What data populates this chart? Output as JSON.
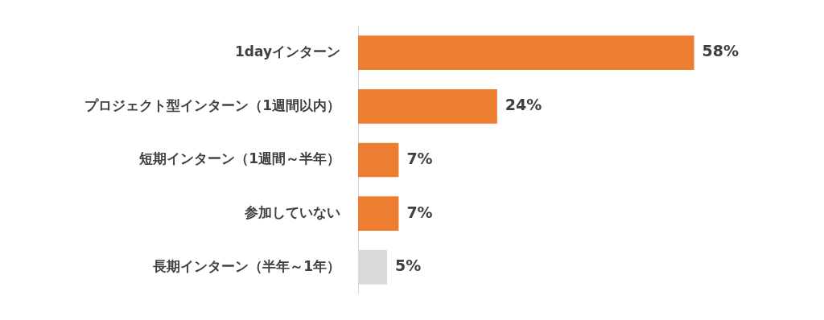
{
  "chart_data": {
    "type": "bar",
    "orientation": "horizontal",
    "categories": [
      "1dayインターン",
      "プロジェクト型インターン（1週間以内）",
      "短期インターン（1週間～半年）",
      "参加していない",
      "長期インターン（半年～1年）"
    ],
    "values": [
      58,
      24,
      7,
      7,
      5
    ],
    "colors": [
      "#ed7d31",
      "#ed7d31",
      "#ed7d31",
      "#ed7d31",
      "#d9d9d9"
    ],
    "value_labels": [
      "58%",
      "24%",
      "7%",
      "7%",
      "5%"
    ],
    "legend": false
  }
}
